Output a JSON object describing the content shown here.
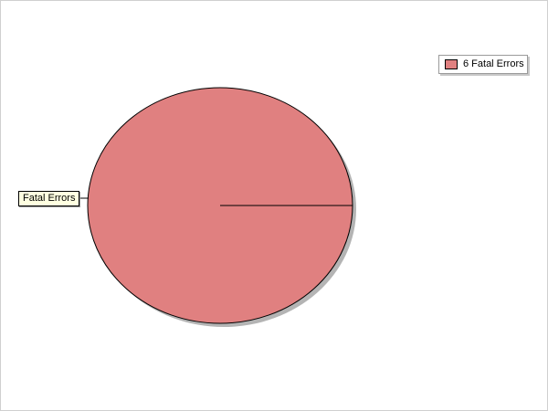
{
  "chart_data": {
    "type": "pie",
    "slices": [
      {
        "label": "Fatal Errors",
        "value": 6,
        "color": "#e08080"
      }
    ],
    "legend": {
      "placement": "top-right",
      "entries": [
        "6 Fatal Errors"
      ]
    },
    "slice_labels": [
      "Fatal Errors"
    ],
    "shadow": true
  }
}
